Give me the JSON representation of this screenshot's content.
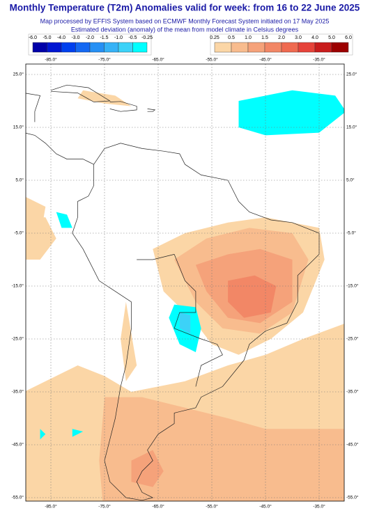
{
  "header": {
    "title": "Monthly Temperature (T2m) Anomalies valid for week: from 16 to 22 June 2025",
    "subtitle": [
      "Map processed by EFFIS System based on ECMWF Monthly Forecast System initiated on 17 May 2025",
      "Estimated deviation (anomaly) of the mean from model climate in Celsius degrees"
    ]
  },
  "legend": {
    "negative": {
      "labels": [
        "-6.0",
        "-5.0",
        "-4.0",
        "-3.0",
        "-2.0",
        "-1.5",
        "-1.0",
        "-0.5",
        "-0.25"
      ],
      "colors": [
        "#0000a8",
        "#0016d2",
        "#0040ee",
        "#1468f2",
        "#2690f4",
        "#36b2f6",
        "#3cd2f8",
        "#00ffff"
      ]
    },
    "positive": {
      "labels": [
        "0.25",
        "0.5",
        "1.0",
        "1.5",
        "2.0",
        "3.0",
        "4.0",
        "5.0",
        "6.0"
      ],
      "colors": [
        "#fbd6a6",
        "#f8bc8e",
        "#f5a27a",
        "#f28766",
        "#ef6a50",
        "#e6433a",
        "#c81c1c",
        "#9c0000"
      ]
    }
  },
  "map": {
    "lon_labels": [
      "-85.0°",
      "-75.0°",
      "-65.0°",
      "-55.0°",
      "-45.0°",
      "-35.0°"
    ],
    "lat_labels": [
      "25.0°",
      "15.0°",
      "5.0°",
      "-5.0°",
      "-15.0°",
      "-25.0°",
      "-35.0°",
      "-45.0°",
      "-55.0°"
    ]
  }
}
